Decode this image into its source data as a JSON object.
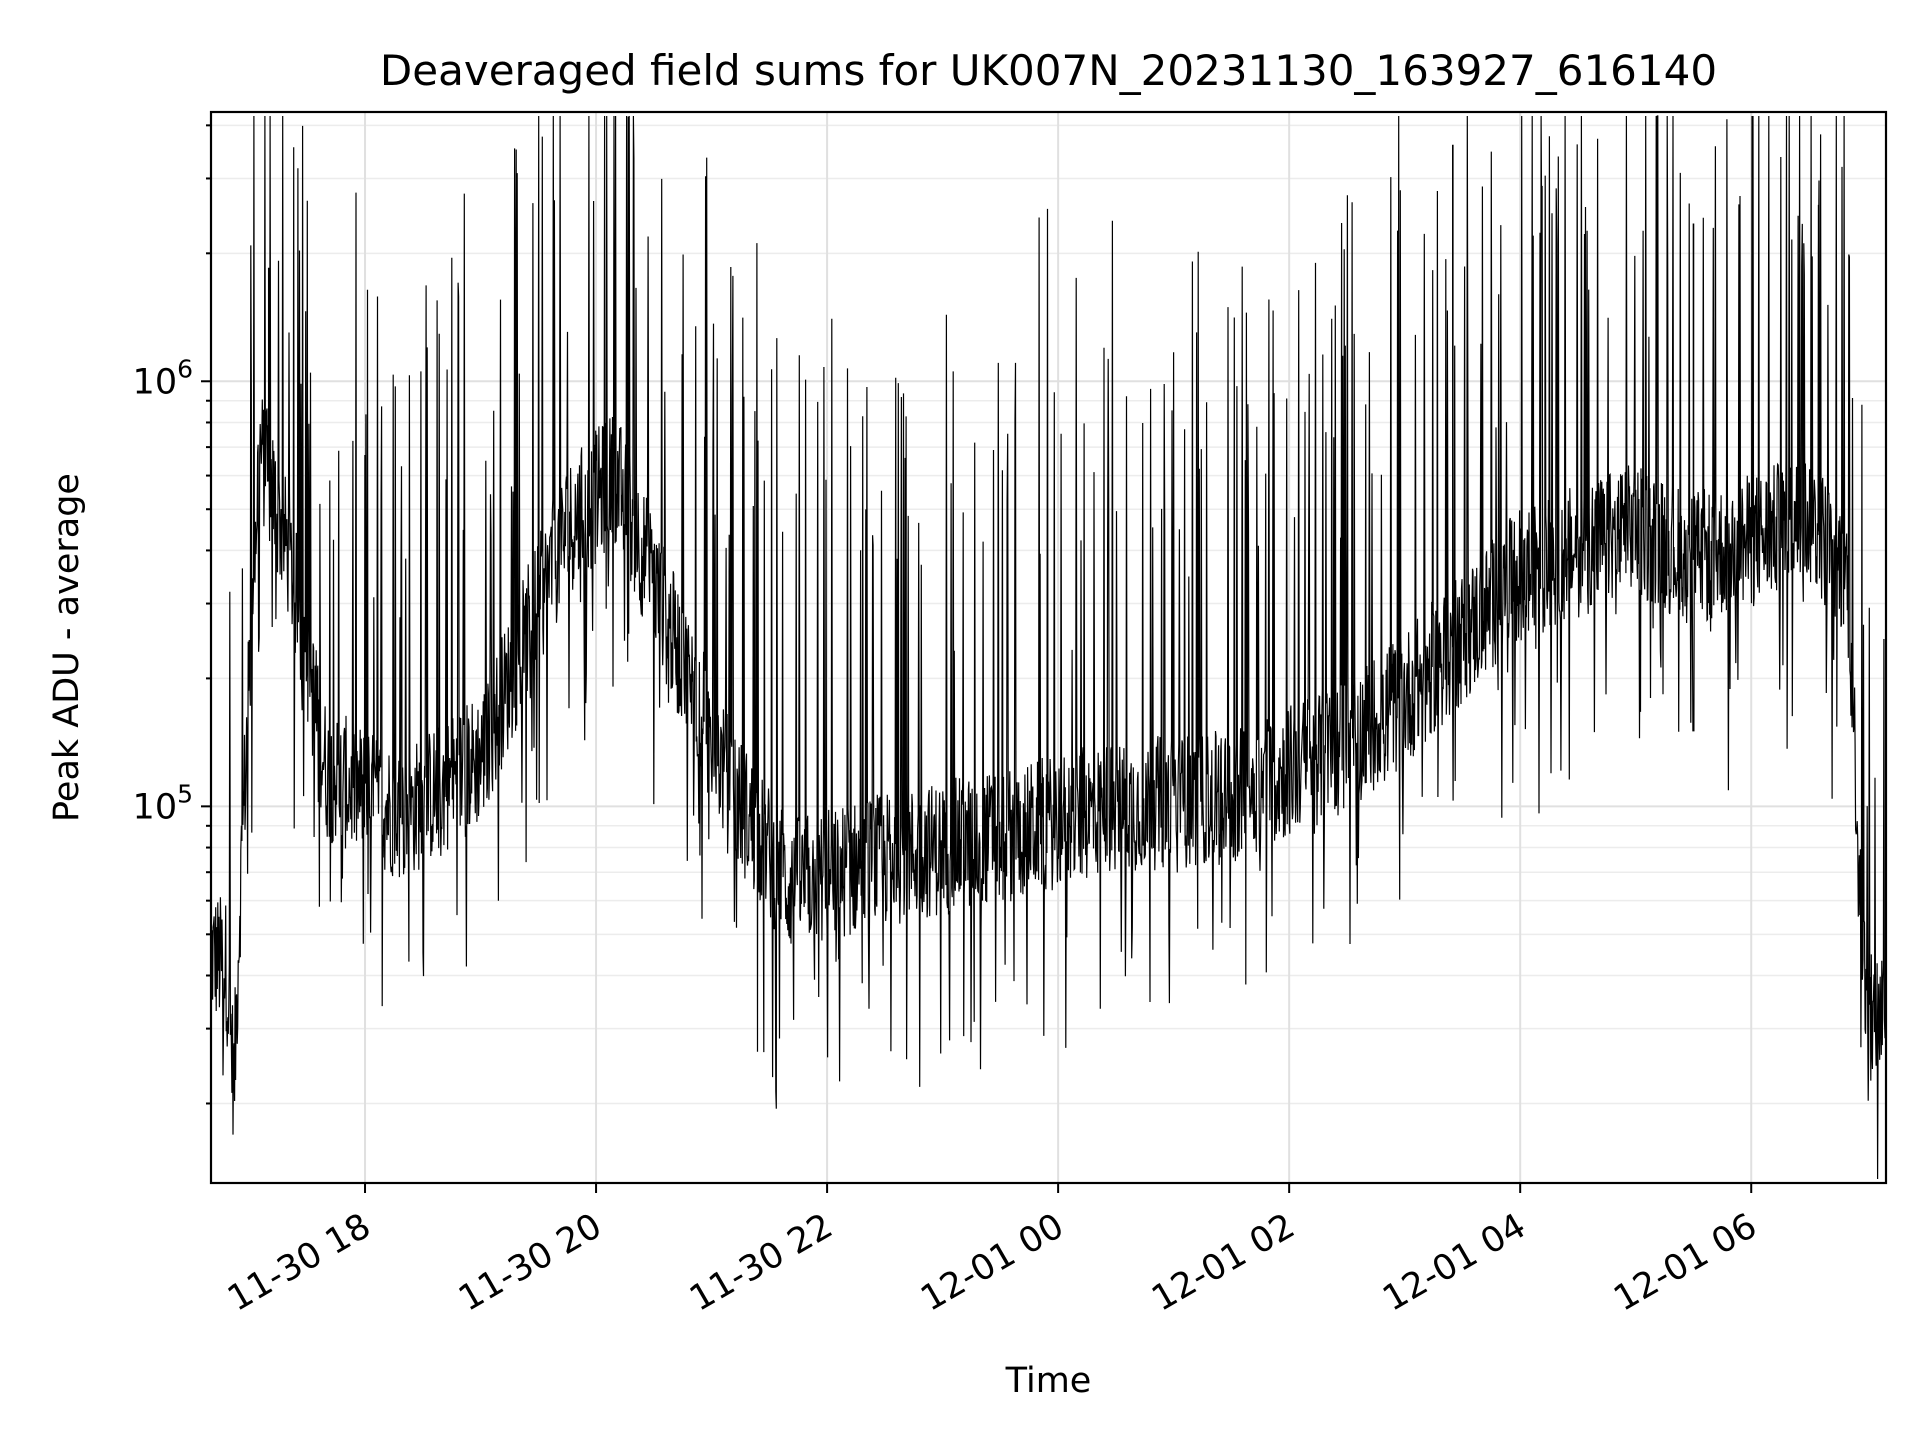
{
  "chart_data": {
    "type": "line",
    "title": "Deaveraged field sums for UK007N_20231130_163927_616140",
    "xlabel": "Time",
    "ylabel": "Peak ADU - average",
    "x_axis": {
      "type": "time",
      "range": [
        "2023-11-30 16:40",
        "2023-12-01 07:10"
      ],
      "ticks": [
        {
          "value": "2023-11-30 18:00",
          "label": "11-30 18"
        },
        {
          "value": "2023-11-30 20:00",
          "label": "11-30 20"
        },
        {
          "value": "2023-11-30 22:00",
          "label": "11-30 22"
        },
        {
          "value": "2023-12-01 00:00",
          "label": "12-01 00"
        },
        {
          "value": "2023-12-01 02:00",
          "label": "12-01 02"
        },
        {
          "value": "2023-12-01 04:00",
          "label": "12-01 04"
        },
        {
          "value": "2023-12-01 06:00",
          "label": "12-01 06"
        }
      ],
      "tick_label_rotation_deg": 30
    },
    "y_axis": {
      "scale": "log",
      "range": [
        13000,
        4300000
      ],
      "major_ticks": [
        {
          "value": 100000,
          "base": "10",
          "exp": "5"
        },
        {
          "value": 1000000,
          "base": "10",
          "exp": "6"
        }
      ]
    },
    "grid": true,
    "series": [
      {
        "color": "#000000",
        "description_points": {
          "x": [
            "2023-11-30 16:40",
            "2023-11-30 16:48",
            "2023-11-30 16:52",
            "2023-11-30 16:55",
            "2023-11-30 17:05",
            "2023-11-30 17:20",
            "2023-11-30 17:40",
            "2023-11-30 18:20",
            "2023-11-30 19:00",
            "2023-11-30 19:45",
            "2023-11-30 20:10",
            "2023-11-30 20:40",
            "2023-11-30 21:10",
            "2023-11-30 21:40",
            "2023-11-30 22:30",
            "2023-11-30 23:30",
            "2023-12-01 00:30",
            "2023-12-01 01:30",
            "2023-12-01 02:30",
            "2023-12-01 03:00",
            "2023-12-01 03:30",
            "2023-12-01 04:00",
            "2023-12-01 04:30",
            "2023-12-01 05:00",
            "2023-12-01 05:30",
            "2023-12-01 06:00",
            "2023-12-01 06:30",
            "2023-12-01 06:50",
            "2023-12-01 07:00",
            "2023-12-01 07:10"
          ],
          "y": [
            45000,
            42000,
            22000,
            60000,
            700000,
            400000,
            120000,
            95000,
            130000,
            450000,
            600000,
            250000,
            110000,
            65000,
            75000,
            85000,
            100000,
            105000,
            140000,
            180000,
            250000,
            350000,
            400000,
            450000,
            380000,
            420000,
            480000,
            350000,
            30000,
            35000
          ]
        },
        "spikes": [
          {
            "x": "2023-11-30 17:10",
            "y": 1850000
          },
          {
            "x": "2023-12-01 03:25",
            "y": 3600000
          },
          {
            "x": "2023-12-01 05:30",
            "y": 2350000
          },
          {
            "x": "2023-12-01 06:35",
            "y": 2600000
          }
        ]
      }
    ]
  }
}
